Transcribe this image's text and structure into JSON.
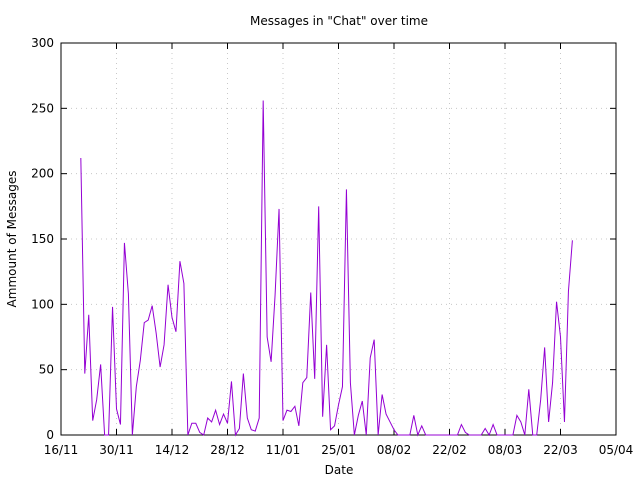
{
  "chart_data": {
    "type": "line",
    "title": "Messages in \"Chat\" over time",
    "xlabel": "Date",
    "ylabel": "Ammount of Messages",
    "ylim": [
      0,
      300
    ],
    "xlim": [
      "2016-11-16",
      "2017-04-05"
    ],
    "y_ticks": [
      0,
      50,
      100,
      150,
      200,
      250,
      300
    ],
    "x_ticks": [
      {
        "date": "2016-11-16",
        "label": "16/11"
      },
      {
        "date": "2016-11-30",
        "label": "30/11"
      },
      {
        "date": "2016-12-14",
        "label": "14/12"
      },
      {
        "date": "2016-12-28",
        "label": "28/12"
      },
      {
        "date": "2017-01-11",
        "label": "11/01"
      },
      {
        "date": "2017-01-25",
        "label": "25/01"
      },
      {
        "date": "2017-02-08",
        "label": "08/02"
      },
      {
        "date": "2017-02-22",
        "label": "22/02"
      },
      {
        "date": "2017-03-08",
        "label": "08/03"
      },
      {
        "date": "2017-03-22",
        "label": "22/03"
      },
      {
        "date": "2017-04-05",
        "label": "05/04"
      }
    ],
    "grid": true,
    "line_color": "#9400d3",
    "series": [
      {
        "values": [
          [
            "2016-11-21",
            212
          ],
          [
            "2016-11-22",
            47
          ],
          [
            "2016-11-23",
            92
          ],
          [
            "2016-11-24",
            11
          ],
          [
            "2016-11-25",
            27
          ],
          [
            "2016-11-26",
            54
          ],
          [
            "2016-11-27",
            0
          ],
          [
            "2016-11-28",
            0
          ],
          [
            "2016-11-29",
            98
          ],
          [
            "2016-11-30",
            20
          ],
          [
            "2016-12-01",
            8
          ],
          [
            "2016-12-02",
            147
          ],
          [
            "2016-12-03",
            108
          ],
          [
            "2016-12-04",
            0
          ],
          [
            "2016-12-05",
            37
          ],
          [
            "2016-12-06",
            57
          ],
          [
            "2016-12-07",
            86
          ],
          [
            "2016-12-08",
            88
          ],
          [
            "2016-12-09",
            99
          ],
          [
            "2016-12-10",
            78
          ],
          [
            "2016-12-11",
            52
          ],
          [
            "2016-12-12",
            69
          ],
          [
            "2016-12-13",
            115
          ],
          [
            "2016-12-14",
            90
          ],
          [
            "2016-12-15",
            79
          ],
          [
            "2016-12-16",
            133
          ],
          [
            "2016-12-17",
            116
          ],
          [
            "2016-12-18",
            0
          ],
          [
            "2016-12-19",
            9
          ],
          [
            "2016-12-20",
            9
          ],
          [
            "2016-12-21",
            2
          ],
          [
            "2016-12-22",
            0
          ],
          [
            "2016-12-23",
            13
          ],
          [
            "2016-12-24",
            10
          ],
          [
            "2016-12-25",
            19
          ],
          [
            "2016-12-26",
            8
          ],
          [
            "2016-12-27",
            16
          ],
          [
            "2016-12-28",
            9
          ],
          [
            "2016-12-29",
            41
          ],
          [
            "2016-12-30",
            0
          ],
          [
            "2016-12-31",
            5
          ],
          [
            "2017-01-01",
            47
          ],
          [
            "2017-01-02",
            13
          ],
          [
            "2017-01-03",
            4
          ],
          [
            "2017-01-04",
            3
          ],
          [
            "2017-01-05",
            13
          ],
          [
            "2017-01-06",
            256
          ],
          [
            "2017-01-07",
            75
          ],
          [
            "2017-01-08",
            56
          ],
          [
            "2017-01-09",
            107
          ],
          [
            "2017-01-10",
            173
          ],
          [
            "2017-01-11",
            11
          ],
          [
            "2017-01-12",
            19
          ],
          [
            "2017-01-13",
            18
          ],
          [
            "2017-01-14",
            22
          ],
          [
            "2017-01-15",
            7
          ],
          [
            "2017-01-16",
            40
          ],
          [
            "2017-01-17",
            44
          ],
          [
            "2017-01-18",
            109
          ],
          [
            "2017-01-19",
            43
          ],
          [
            "2017-01-20",
            175
          ],
          [
            "2017-01-21",
            14
          ],
          [
            "2017-01-22",
            69
          ],
          [
            "2017-01-23",
            4
          ],
          [
            "2017-01-24",
            7
          ],
          [
            "2017-01-25",
            23
          ],
          [
            "2017-01-26",
            37
          ],
          [
            "2017-01-27",
            188
          ],
          [
            "2017-01-28",
            40
          ],
          [
            "2017-01-29",
            0
          ],
          [
            "2017-01-30",
            15
          ],
          [
            "2017-01-31",
            26
          ],
          [
            "2017-02-01",
            0
          ],
          [
            "2017-02-02",
            59
          ],
          [
            "2017-02-03",
            73
          ],
          [
            "2017-02-04",
            0
          ],
          [
            "2017-02-05",
            31
          ],
          [
            "2017-02-06",
            16
          ],
          [
            "2017-02-07",
            10
          ],
          [
            "2017-02-08",
            4
          ],
          [
            "2017-02-09",
            0
          ],
          [
            "2017-02-10",
            0
          ],
          [
            "2017-02-11",
            0
          ],
          [
            "2017-02-12",
            0
          ],
          [
            "2017-02-13",
            15
          ],
          [
            "2017-02-14",
            0
          ],
          [
            "2017-02-15",
            7
          ],
          [
            "2017-02-16",
            0
          ],
          [
            "2017-02-17",
            0
          ],
          [
            "2017-02-24",
            0
          ],
          [
            "2017-02-25",
            8
          ],
          [
            "2017-02-26",
            2
          ],
          [
            "2017-02-27",
            0
          ],
          [
            "2017-03-01",
            0
          ],
          [
            "2017-03-02",
            0
          ],
          [
            "2017-03-03",
            5
          ],
          [
            "2017-03-04",
            0
          ],
          [
            "2017-03-05",
            8
          ],
          [
            "2017-03-06",
            0
          ],
          [
            "2017-03-07",
            0
          ],
          [
            "2017-03-10",
            0
          ],
          [
            "2017-03-11",
            15
          ],
          [
            "2017-03-12",
            10
          ],
          [
            "2017-03-13",
            0
          ],
          [
            "2017-03-14",
            35
          ],
          [
            "2017-03-15",
            0
          ],
          [
            "2017-03-16",
            0
          ],
          [
            "2017-03-17",
            27
          ],
          [
            "2017-03-18",
            67
          ],
          [
            "2017-03-19",
            10
          ],
          [
            "2017-03-20",
            40
          ],
          [
            "2017-03-21",
            102
          ],
          [
            "2017-03-22",
            75
          ],
          [
            "2017-03-23",
            10
          ],
          [
            "2017-03-24",
            110
          ],
          [
            "2017-03-25",
            149
          ]
        ]
      }
    ]
  }
}
